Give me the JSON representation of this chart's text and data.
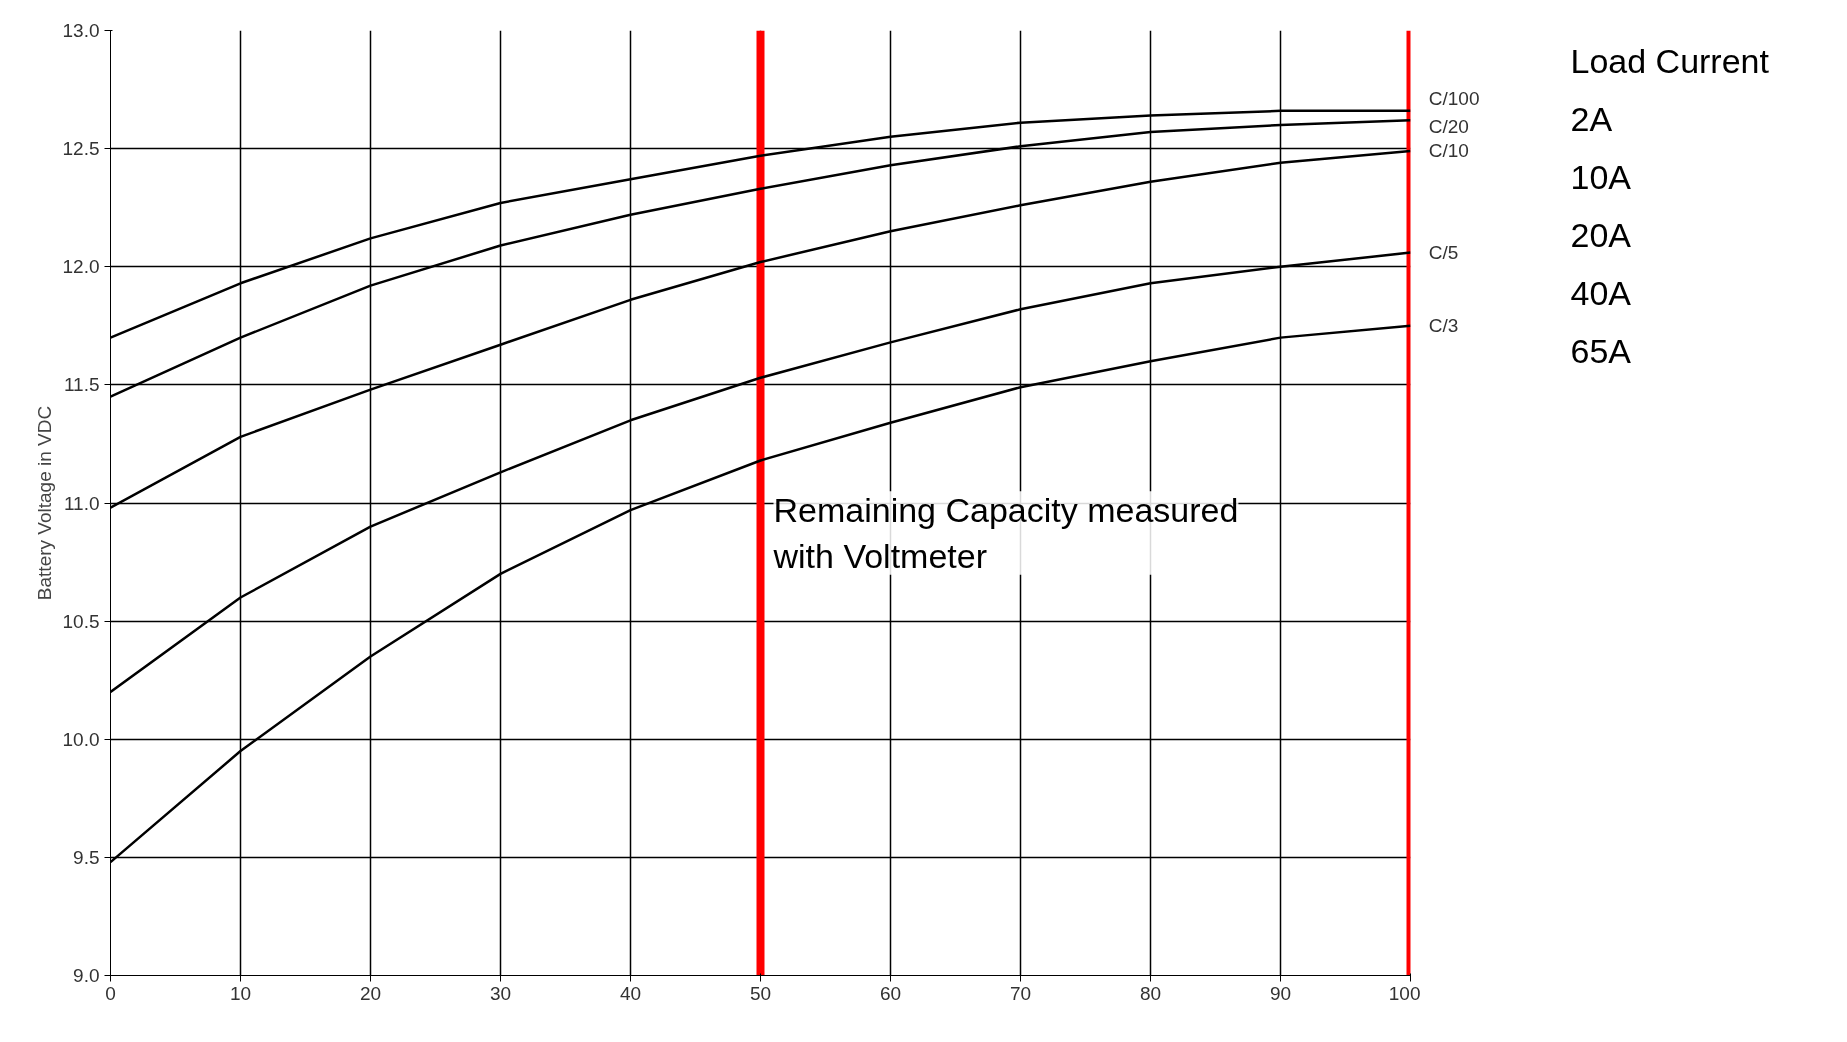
{
  "chart_data": {
    "type": "line",
    "ylabel": "Battery Voltage in VDC",
    "x": [
      0,
      10,
      20,
      30,
      40,
      50,
      60,
      70,
      80,
      90,
      100
    ],
    "series": [
      {
        "name": "C/100",
        "color": "#000000",
        "values": [
          11.7,
          11.93,
          12.12,
          12.27,
          12.37,
          12.47,
          12.55,
          12.61,
          12.64,
          12.66,
          12.66
        ]
      },
      {
        "name": "C/20",
        "color": "#000000",
        "values": [
          11.45,
          11.7,
          11.92,
          12.09,
          12.22,
          12.33,
          12.43,
          12.51,
          12.57,
          12.6,
          12.62
        ]
      },
      {
        "name": "C/10",
        "color": "#000000",
        "values": [
          10.98,
          11.28,
          11.48,
          11.67,
          11.86,
          12.02,
          12.15,
          12.26,
          12.36,
          12.44,
          12.49
        ]
      },
      {
        "name": "C/5",
        "color": "#000000",
        "values": [
          10.2,
          10.6,
          10.9,
          11.13,
          11.35,
          11.53,
          11.68,
          11.82,
          11.93,
          12.0,
          12.06
        ]
      },
      {
        "name": "C/3",
        "color": "#000000",
        "values": [
          9.48,
          9.95,
          10.35,
          10.7,
          10.97,
          11.18,
          11.34,
          11.49,
          11.6,
          11.7,
          11.75
        ]
      }
    ],
    "xlim": [
      0,
      100
    ],
    "xticks": [
      0,
      10,
      20,
      30,
      40,
      50,
      60,
      70,
      80,
      90,
      100
    ],
    "ylim": [
      9,
      13
    ],
    "yticks": [
      {
        "value": 9,
        "label": "9.0"
      },
      {
        "value": 9.5,
        "label": "9.5"
      },
      {
        "value": 10,
        "label": "10.0"
      },
      {
        "value": 10.5,
        "label": "10.5"
      },
      {
        "value": 11,
        "label": "11.0"
      },
      {
        "value": 11.5,
        "label": "11.5"
      },
      {
        "value": 12,
        "label": "12.0"
      },
      {
        "value": 12.5,
        "label": "12.5"
      },
      {
        "value": 13,
        "label": "13.0"
      }
    ],
    "grid": true,
    "marker": "none",
    "line_style": "solid",
    "ref_lines": [
      {
        "axis": "x",
        "value": 50,
        "label": null,
        "color": "#ff0000"
      },
      {
        "axis": "x",
        "value": 100,
        "label": null,
        "color": "#ff0000"
      }
    ],
    "annotations": [
      "Load Current",
      "2A",
      "10A",
      "20A",
      "40A",
      "65A",
      "Remaining Capacity measured\n with Voltmeter"
    ]
  }
}
